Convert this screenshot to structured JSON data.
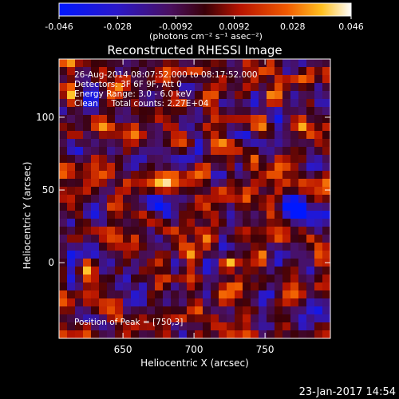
{
  "colorbar": {
    "ticks": [
      "-0.046",
      "-0.028",
      "-0.0092",
      "0.0092",
      "0.028",
      "0.046"
    ],
    "units_label": "(photons cm⁻² s⁻¹ asec⁻²)"
  },
  "plot": {
    "title": "Reconstructed RHESSI Image",
    "info_lines": [
      "26-Aug-2014 08:07:52.000 to 08:17:52.000",
      "Detectors: 3F 6F 9F, Att 0",
      "Energy Range: 3.0 - 6.0 keV",
      "Clean     Total counts: 2.27E+04"
    ],
    "peak_label": "Position of Peak = [750,3]",
    "xlabel": "Heliocentric X (arcsec)",
    "ylabel": "Heliocentric Y (arcsec)"
  },
  "footer": {
    "timestamp": "23-Jan-2017 14:54"
  },
  "chart_data": {
    "type": "heatmap",
    "title": "Reconstructed RHESSI Image",
    "xlabel": "Heliocentric X (arcsec)",
    "ylabel": "Heliocentric Y (arcsec)",
    "x_ticks": [
      650,
      700,
      750
    ],
    "y_ticks": [
      0,
      50,
      100
    ],
    "xlim": [
      605,
      796
    ],
    "ylim": [
      -52,
      140
    ],
    "color_range": [
      -0.046,
      0.046
    ],
    "colormap": "red-temperature (blue negative → purple → red → yellow → white)",
    "peak_position": [
      750,
      3
    ]
  }
}
